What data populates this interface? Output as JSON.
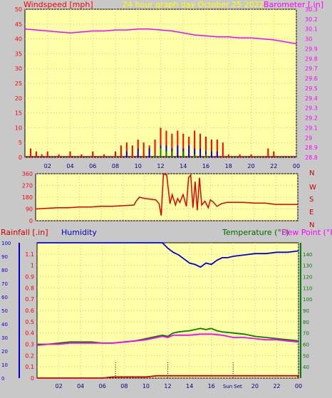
{
  "header": {
    "windspeed_label": "Windspeed [mph]",
    "title": "24 hour graph day   October 25 2022",
    "barometer_label": "Barometer [.in]"
  },
  "lower_header": {
    "rainfall_label": "Rainfall [.in]",
    "humidity_label": "Humidity",
    "temperature_label": "Temperature (°F)",
    "dewpoint_label": "Dew Point (°F)"
  },
  "direction_labels": [
    "N",
    "W",
    "S",
    "E",
    "N"
  ],
  "sun_labels": {
    "sunrise": "Sun",
    "sunset": "Set"
  },
  "colors": {
    "background": "#c8c8c8",
    "plot_bg": "#ffffa8",
    "wind": "#ff0000",
    "gust": "#0000ff",
    "wind_green": "#008800",
    "barometer": "#ff00ff",
    "direction": "#dd0000",
    "humidity": "#0000dd",
    "temperature": "#008000",
    "dewpoint": "#ff00ff",
    "rain": "#cc0000",
    "title": "#ffff00",
    "axis_left": "#ff0000",
    "axis_right": "#ff00ff",
    "dir_labels": "#cc0000"
  },
  "chart_data": [
    {
      "type": "line",
      "name": "wind-barometer",
      "x_ticks": [
        "02",
        "04",
        "06",
        "08",
        "10",
        "12",
        "14",
        "16",
        "18",
        "20",
        "22",
        "00"
      ],
      "xlim_hours": [
        0,
        24
      ],
      "ylabel": "Windspeed [mph]",
      "ylim": [
        0,
        50
      ],
      "y_ticks": [
        0,
        5,
        10,
        15,
        20,
        25,
        30,
        35,
        40,
        45,
        50
      ],
      "y2label": "Barometer [.in]",
      "y2lim": [
        28.8,
        30.3
      ],
      "y2_ticks": [
        "28.8",
        "28.9",
        "29",
        "29.1",
        "29.2",
        "29.3",
        "29.4",
        "29.5",
        "29.6",
        "29.7",
        "29.8",
        "29.9",
        "30",
        "30.1",
        "30.2",
        "30.3"
      ],
      "series": [
        {
          "key": "barometer",
          "axis": "right",
          "x": [
            0,
            1,
            2,
            3,
            4,
            5,
            6,
            7,
            8,
            9,
            10,
            11,
            12,
            13,
            14,
            15,
            16,
            17,
            18,
            19,
            20,
            21,
            22,
            23,
            24
          ],
          "values": [
            30.1,
            30.09,
            30.08,
            30.07,
            30.06,
            30.07,
            30.08,
            30.08,
            30.09,
            30.09,
            30.1,
            30.1,
            30.09,
            30.08,
            30.06,
            30.04,
            30.03,
            30.02,
            30.02,
            30.01,
            30.01,
            30.0,
            29.99,
            29.97,
            29.95
          ]
        },
        {
          "key": "wind_avg",
          "axis": "left",
          "color_key": "wind",
          "style": "bars",
          "x": [
            0.5,
            1,
            1.5,
            2,
            3,
            4,
            5,
            6,
            7,
            8,
            8.5,
            9,
            9.5,
            10,
            10.5,
            11,
            11.5,
            12,
            12.5,
            13,
            13.5,
            14,
            14.5,
            15,
            15.5,
            16,
            16.5,
            17,
            17.5,
            18,
            19,
            20,
            21,
            21.5,
            22,
            23
          ],
          "values": [
            3,
            2,
            1,
            2,
            1,
            2,
            1,
            2,
            1,
            2,
            4,
            5,
            4,
            6,
            5,
            4,
            6,
            10,
            9,
            8,
            9,
            8,
            7,
            9,
            8,
            7,
            6,
            6,
            5,
            1,
            1,
            1,
            0,
            3,
            2,
            0
          ]
        },
        {
          "key": "gust",
          "axis": "left",
          "color_key": "gust",
          "style": "bars",
          "x": [
            9,
            10,
            11,
            12,
            12.5,
            13,
            13.5,
            14,
            14.5,
            15,
            15.5,
            16,
            16.5,
            17
          ],
          "values": [
            2,
            3,
            3,
            4,
            4,
            3,
            4,
            3,
            4,
            3,
            3,
            2,
            2,
            2
          ]
        },
        {
          "key": "wind_low",
          "axis": "left",
          "color_key": "wind_green",
          "style": "bars",
          "x": [
            11.5,
            12,
            12.5,
            13,
            14,
            15,
            16
          ],
          "values": [
            1,
            3,
            2,
            2,
            2,
            1,
            1
          ]
        }
      ]
    },
    {
      "type": "line",
      "name": "wind-direction",
      "x_ticks": [
        "02",
        "04",
        "06",
        "08",
        "10",
        "12",
        "14",
        "16",
        "18",
        "20",
        "22",
        "00"
      ],
      "xlim_hours": [
        0,
        24
      ],
      "ylim": [
        0,
        360
      ],
      "y_ticks": [
        0,
        90,
        180,
        270,
        360
      ],
      "series": [
        {
          "key": "direction",
          "color_key": "direction",
          "x": [
            0,
            1,
            2,
            3,
            4,
            5,
            6,
            7,
            8,
            9,
            9.2,
            9.5,
            10,
            10.5,
            11,
            11.3,
            11.5,
            11.7,
            12,
            12.3,
            12.5,
            12.8,
            13,
            13.2,
            13.5,
            13.8,
            14,
            14.2,
            14.4,
            14.6,
            14.8,
            15,
            15.2,
            15.5,
            15.8,
            16,
            16.3,
            16.6,
            17,
            17.5,
            18,
            19,
            20,
            21,
            22,
            23,
            24
          ],
          "values": [
            90,
            95,
            100,
            100,
            105,
            105,
            110,
            110,
            115,
            120,
            150,
            180,
            170,
            165,
            160,
            130,
            40,
            360,
            350,
            130,
            200,
            120,
            170,
            140,
            200,
            110,
            330,
            350,
            100,
            300,
            80,
            330,
            120,
            150,
            100,
            160,
            140,
            110,
            130,
            140,
            140,
            140,
            135,
            135,
            125,
            125,
            125
          ]
        }
      ]
    },
    {
      "type": "line",
      "name": "rain-humidity-temperature",
      "x_ticks": [
        "02",
        "04",
        "06",
        "08",
        "10",
        "12",
        "14",
        "16",
        "18",
        "20",
        "22",
        "00"
      ],
      "xlim_hours": [
        0,
        24
      ],
      "ylabel": "Rainfall [.in]",
      "ylim": [
        0,
        1.2
      ],
      "y_ticks": [
        "0",
        "0.1",
        "0.2",
        "0.3",
        "0.4",
        "0.5",
        "0.6",
        "0.7",
        "0.8",
        "0.9",
        "1",
        "1.1"
      ],
      "humidity_ticks": [
        "0",
        "10",
        "20",
        "30",
        "40",
        "50",
        "60",
        "70",
        "80",
        "90",
        "100"
      ],
      "humidity_lim": [
        0,
        100
      ],
      "y2lim": [
        30,
        150
      ],
      "y2_ticks": [
        "40",
        "50",
        "60",
        "70",
        "80",
        "90",
        "100",
        "110",
        "120",
        "130",
        "140"
      ],
      "sunrise_hour": 7.2,
      "sunset_hour": 18.0,
      "series": [
        {
          "key": "humidity",
          "color_key": "humidity",
          "axis": "humidity",
          "x": [
            0,
            2,
            4,
            6,
            8,
            10,
            11,
            11.5,
            12,
            12.5,
            13,
            13.5,
            14,
            14.5,
            15,
            15.5,
            16,
            16.5,
            17,
            17.5,
            18,
            19,
            20,
            21,
            22,
            23,
            24
          ],
          "values": [
            100,
            100,
            100,
            100,
            100,
            100,
            100,
            100,
            96,
            93,
            91,
            88,
            85,
            84,
            82,
            85,
            84,
            87,
            89,
            89,
            90,
            91,
            92,
            92,
            93,
            93,
            94
          ]
        },
        {
          "key": "temperature",
          "color_key": "temperature",
          "axis": "right",
          "x": [
            0,
            1,
            2,
            3,
            4,
            5,
            6,
            7,
            8,
            9,
            10,
            11,
            11.5,
            12,
            12.5,
            13,
            14,
            15,
            15.5,
            16,
            16.5,
            17,
            18,
            19,
            20,
            21,
            22,
            23,
            24
          ],
          "values": [
            60,
            60,
            61,
            62,
            62,
            62,
            61,
            61,
            62,
            63,
            65,
            67,
            68,
            67,
            70,
            71,
            72,
            74,
            73,
            74,
            72,
            71,
            70,
            69,
            67,
            66,
            65,
            64,
            63
          ]
        },
        {
          "key": "dewpoint",
          "color_key": "dewpoint",
          "axis": "right",
          "x": [
            0,
            1,
            2,
            3,
            4,
            5,
            6,
            7,
            8,
            9,
            10,
            11,
            11.5,
            12,
            12.5,
            13,
            14,
            15,
            16,
            17,
            18,
            19,
            20,
            21,
            22,
            23,
            24
          ],
          "values": [
            59,
            60,
            60,
            61,
            61,
            61,
            61,
            61,
            62,
            63,
            64,
            66,
            67,
            66,
            68,
            68,
            68,
            69,
            69,
            68,
            66,
            66,
            65,
            64,
            64,
            63,
            62
          ]
        },
        {
          "key": "rain",
          "color_key": "rain",
          "axis": "left",
          "x": [
            0,
            6,
            7,
            8,
            10,
            11,
            12,
            14,
            16,
            18,
            20,
            22,
            23.9,
            24
          ],
          "values": [
            0.0,
            0.0,
            0.01,
            0.01,
            0.01,
            0.02,
            0.02,
            0.02,
            0.02,
            0.02,
            0.02,
            0.02,
            0.02,
            0.0
          ]
        }
      ]
    }
  ]
}
